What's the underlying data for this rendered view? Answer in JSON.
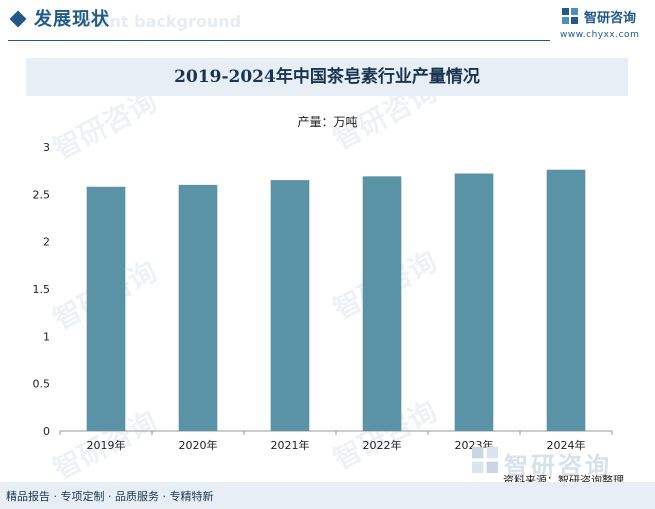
{
  "header": {
    "section_title": "发展现状",
    "section_bg_text": "ment background",
    "brand_name": "智研咨询",
    "brand_url": "www.chyxx.com"
  },
  "watermark_text": "智研咨询",
  "colors": {
    "bar": "#5b93a6",
    "accent": "#1f5a8a",
    "band": "#e7eef6"
  },
  "chart_data": {
    "type": "bar",
    "title": "2019-2024年中国茶皂素行业产量情况",
    "unit_label": "产量：万吨",
    "categories": [
      "2019年",
      "2020年",
      "2021年",
      "2022年",
      "2023年",
      "2024年"
    ],
    "values": [
      2.58,
      2.6,
      2.65,
      2.69,
      2.72,
      2.76
    ],
    "ylim": [
      0,
      3
    ],
    "yticks": [
      "0",
      "0.5",
      "1",
      "1.5",
      "2",
      "2.5",
      "3"
    ],
    "grid": false,
    "legend": "none"
  },
  "footer": {
    "tagline": "精品报告 · 专项定制 · 品质服务 · 专精特新",
    "source": "资料来源：智研咨询整理",
    "logo_text": "智研咨询"
  }
}
